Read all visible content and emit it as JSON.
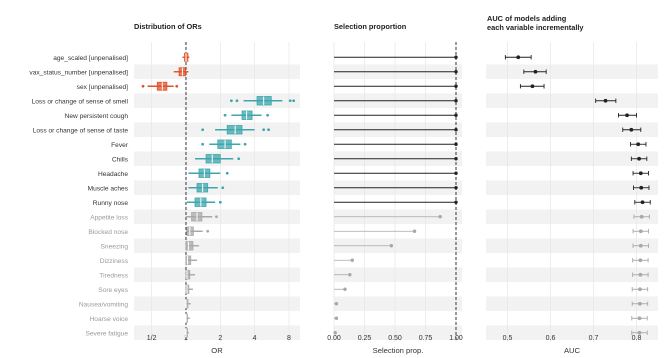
{
  "chart_data": [
    {
      "type": "boxplot",
      "title": "Distribution of ORs",
      "xlabel": "OR",
      "xscale": "log2",
      "xlim": [
        0.35,
        10
      ],
      "xticks": [
        0.5,
        1,
        2,
        4,
        8
      ],
      "xtick_labels": [
        "1/2",
        "1",
        "2",
        "4",
        "8"
      ],
      "reference_line": 1,
      "colors": {
        "unpenalised": "#e0522a",
        "selected": "#3ea6ac",
        "not_selected": "#a8a8a8"
      },
      "variables": [
        {
          "label": "age_scaled [unpenalised]",
          "group": "unpenalised",
          "median": 1.0,
          "q1": 0.97,
          "q3": 1.04,
          "wlo": 0.93,
          "whi": 1.07,
          "outliers": []
        },
        {
          "label": "vax_status_number [unpenalised]",
          "group": "unpenalised",
          "median": 0.93,
          "q1": 0.87,
          "q3": 0.99,
          "wlo": 0.78,
          "whi": 1.05,
          "outliers": []
        },
        {
          "label": "sex [unpenalised]",
          "group": "unpenalised",
          "median": 0.62,
          "q1": 0.56,
          "q3": 0.68,
          "wlo": 0.46,
          "whi": 0.78,
          "outliers": [
            0.42,
            0.83
          ]
        },
        {
          "label": "Loss or change of sense of smell",
          "group": "selected",
          "median": 4.8,
          "q1": 4.2,
          "q3": 5.6,
          "wlo": 3.2,
          "whi": 7.0,
          "outliers": [
            2.5,
            2.8,
            8.2,
            8.8
          ]
        },
        {
          "label": "New persistent cough",
          "group": "selected",
          "median": 3.4,
          "q1": 3.1,
          "q3": 3.8,
          "wlo": 2.5,
          "whi": 4.6,
          "outliers": [
            2.2,
            5.2
          ]
        },
        {
          "label": "Loss or change of sense of taste",
          "group": "selected",
          "median": 2.7,
          "q1": 2.3,
          "q3": 3.1,
          "wlo": 1.8,
          "whi": 4.0,
          "outliers": [
            1.4,
            4.8,
            5.3
          ]
        },
        {
          "label": "Fever",
          "group": "selected",
          "median": 2.2,
          "q1": 1.9,
          "q3": 2.5,
          "wlo": 1.6,
          "whi": 3.0,
          "outliers": [
            1.4,
            3.3
          ]
        },
        {
          "label": "Chills",
          "group": "selected",
          "median": 1.7,
          "q1": 1.5,
          "q3": 2.0,
          "wlo": 1.2,
          "whi": 2.6,
          "outliers": [
            2.9
          ]
        },
        {
          "label": "Headache",
          "group": "selected",
          "median": 1.45,
          "q1": 1.3,
          "q3": 1.62,
          "wlo": 1.05,
          "whi": 2.0,
          "outliers": [
            2.3
          ]
        },
        {
          "label": "Muscle aches",
          "group": "selected",
          "median": 1.4,
          "q1": 1.25,
          "q3": 1.55,
          "wlo": 1.05,
          "whi": 1.9,
          "outliers": [
            2.1
          ]
        },
        {
          "label": "Runny nose",
          "group": "selected",
          "median": 1.35,
          "q1": 1.2,
          "q3": 1.5,
          "wlo": 1.02,
          "whi": 1.8,
          "outliers": [
            2.0
          ]
        },
        {
          "label": "Appetite loss",
          "group": "not_selected",
          "median": 1.25,
          "q1": 1.12,
          "q3": 1.38,
          "wlo": 1.0,
          "whi": 1.7,
          "outliers": [
            1.85
          ]
        },
        {
          "label": "Blocked nose",
          "group": "not_selected",
          "median": 1.08,
          "q1": 1.02,
          "q3": 1.16,
          "wlo": 1.0,
          "whi": 1.4,
          "outliers": [
            1.55
          ]
        },
        {
          "label": "Sneezing",
          "group": "not_selected",
          "median": 1.05,
          "q1": 1.0,
          "q3": 1.15,
          "wlo": 1.0,
          "whi": 1.3,
          "outliers": []
        },
        {
          "label": "Dizziness",
          "group": "not_selected",
          "median": 1.03,
          "q1": 1.0,
          "q3": 1.1,
          "wlo": 1.0,
          "whi": 1.25,
          "outliers": []
        },
        {
          "label": "Tiredness",
          "group": "not_selected",
          "median": 1.02,
          "q1": 1.0,
          "q3": 1.08,
          "wlo": 1.0,
          "whi": 1.2,
          "outliers": []
        },
        {
          "label": "Sore eyes",
          "group": "not_selected",
          "median": 1.02,
          "q1": 1.0,
          "q3": 1.06,
          "wlo": 1.0,
          "whi": 1.15,
          "outliers": []
        },
        {
          "label": "Nausea/vomiting",
          "group": "not_selected",
          "median": 1.0,
          "q1": 1.0,
          "q3": 1.04,
          "wlo": 1.0,
          "whi": 1.1,
          "outliers": []
        },
        {
          "label": "Hoarse voice",
          "group": "not_selected",
          "median": 1.0,
          "q1": 1.0,
          "q3": 1.03,
          "wlo": 1.0,
          "whi": 1.08,
          "outliers": []
        },
        {
          "label": "Severe fatigue",
          "group": "not_selected",
          "median": 1.0,
          "q1": 1.0,
          "q3": 1.02,
          "wlo": 1.0,
          "whi": 1.06,
          "outliers": []
        }
      ]
    },
    {
      "type": "lollipop",
      "title": "Selection proportion",
      "xlabel": "Selection prop.",
      "xlim": [
        0,
        1
      ],
      "xticks": [
        0,
        0.25,
        0.5,
        0.75,
        1.0
      ],
      "xtick_labels": [
        "0.00",
        "0.25",
        "0.50",
        "0.75",
        "1.00"
      ],
      "threshold": 1.0,
      "values": [
        1.0,
        1.0,
        1.0,
        1.0,
        1.0,
        1.0,
        1.0,
        1.0,
        1.0,
        1.0,
        1.0,
        0.87,
        0.66,
        0.47,
        0.15,
        0.13,
        0.09,
        0.02,
        0.02,
        0.01
      ]
    },
    {
      "type": "pointrange",
      "title": "AUC of models adding each variable incrementally",
      "title_lines": [
        "AUC of models adding",
        "each variable incrementally"
      ],
      "xlabel": "AUC",
      "xlim": [
        0.45,
        0.85
      ],
      "xticks": [
        0.5,
        0.6,
        0.7,
        0.8
      ],
      "xtick_labels": [
        "0.5",
        "0.6",
        "0.7",
        "0.8"
      ],
      "points": [
        {
          "auc": 0.525,
          "lo": 0.495,
          "hi": 0.555
        },
        {
          "auc": 0.565,
          "lo": 0.538,
          "hi": 0.59
        },
        {
          "auc": 0.558,
          "lo": 0.53,
          "hi": 0.585
        },
        {
          "auc": 0.728,
          "lo": 0.705,
          "hi": 0.752
        },
        {
          "auc": 0.778,
          "lo": 0.758,
          "hi": 0.8
        },
        {
          "auc": 0.788,
          "lo": 0.768,
          "hi": 0.81
        },
        {
          "auc": 0.804,
          "lo": 0.786,
          "hi": 0.822
        },
        {
          "auc": 0.806,
          "lo": 0.788,
          "hi": 0.824
        },
        {
          "auc": 0.81,
          "lo": 0.792,
          "hi": 0.828
        },
        {
          "auc": 0.811,
          "lo": 0.793,
          "hi": 0.829
        },
        {
          "auc": 0.814,
          "lo": 0.796,
          "hi": 0.832
        },
        {
          "auc": 0.812,
          "lo": 0.794,
          "hi": 0.83
        },
        {
          "auc": 0.81,
          "lo": 0.792,
          "hi": 0.828
        },
        {
          "auc": 0.81,
          "lo": 0.792,
          "hi": 0.828
        },
        {
          "auc": 0.809,
          "lo": 0.791,
          "hi": 0.827
        },
        {
          "auc": 0.809,
          "lo": 0.791,
          "hi": 0.827
        },
        {
          "auc": 0.808,
          "lo": 0.79,
          "hi": 0.826
        },
        {
          "auc": 0.808,
          "lo": 0.79,
          "hi": 0.826
        },
        {
          "auc": 0.807,
          "lo": 0.789,
          "hi": 0.825
        },
        {
          "auc": 0.807,
          "lo": 0.789,
          "hi": 0.825
        }
      ]
    }
  ]
}
